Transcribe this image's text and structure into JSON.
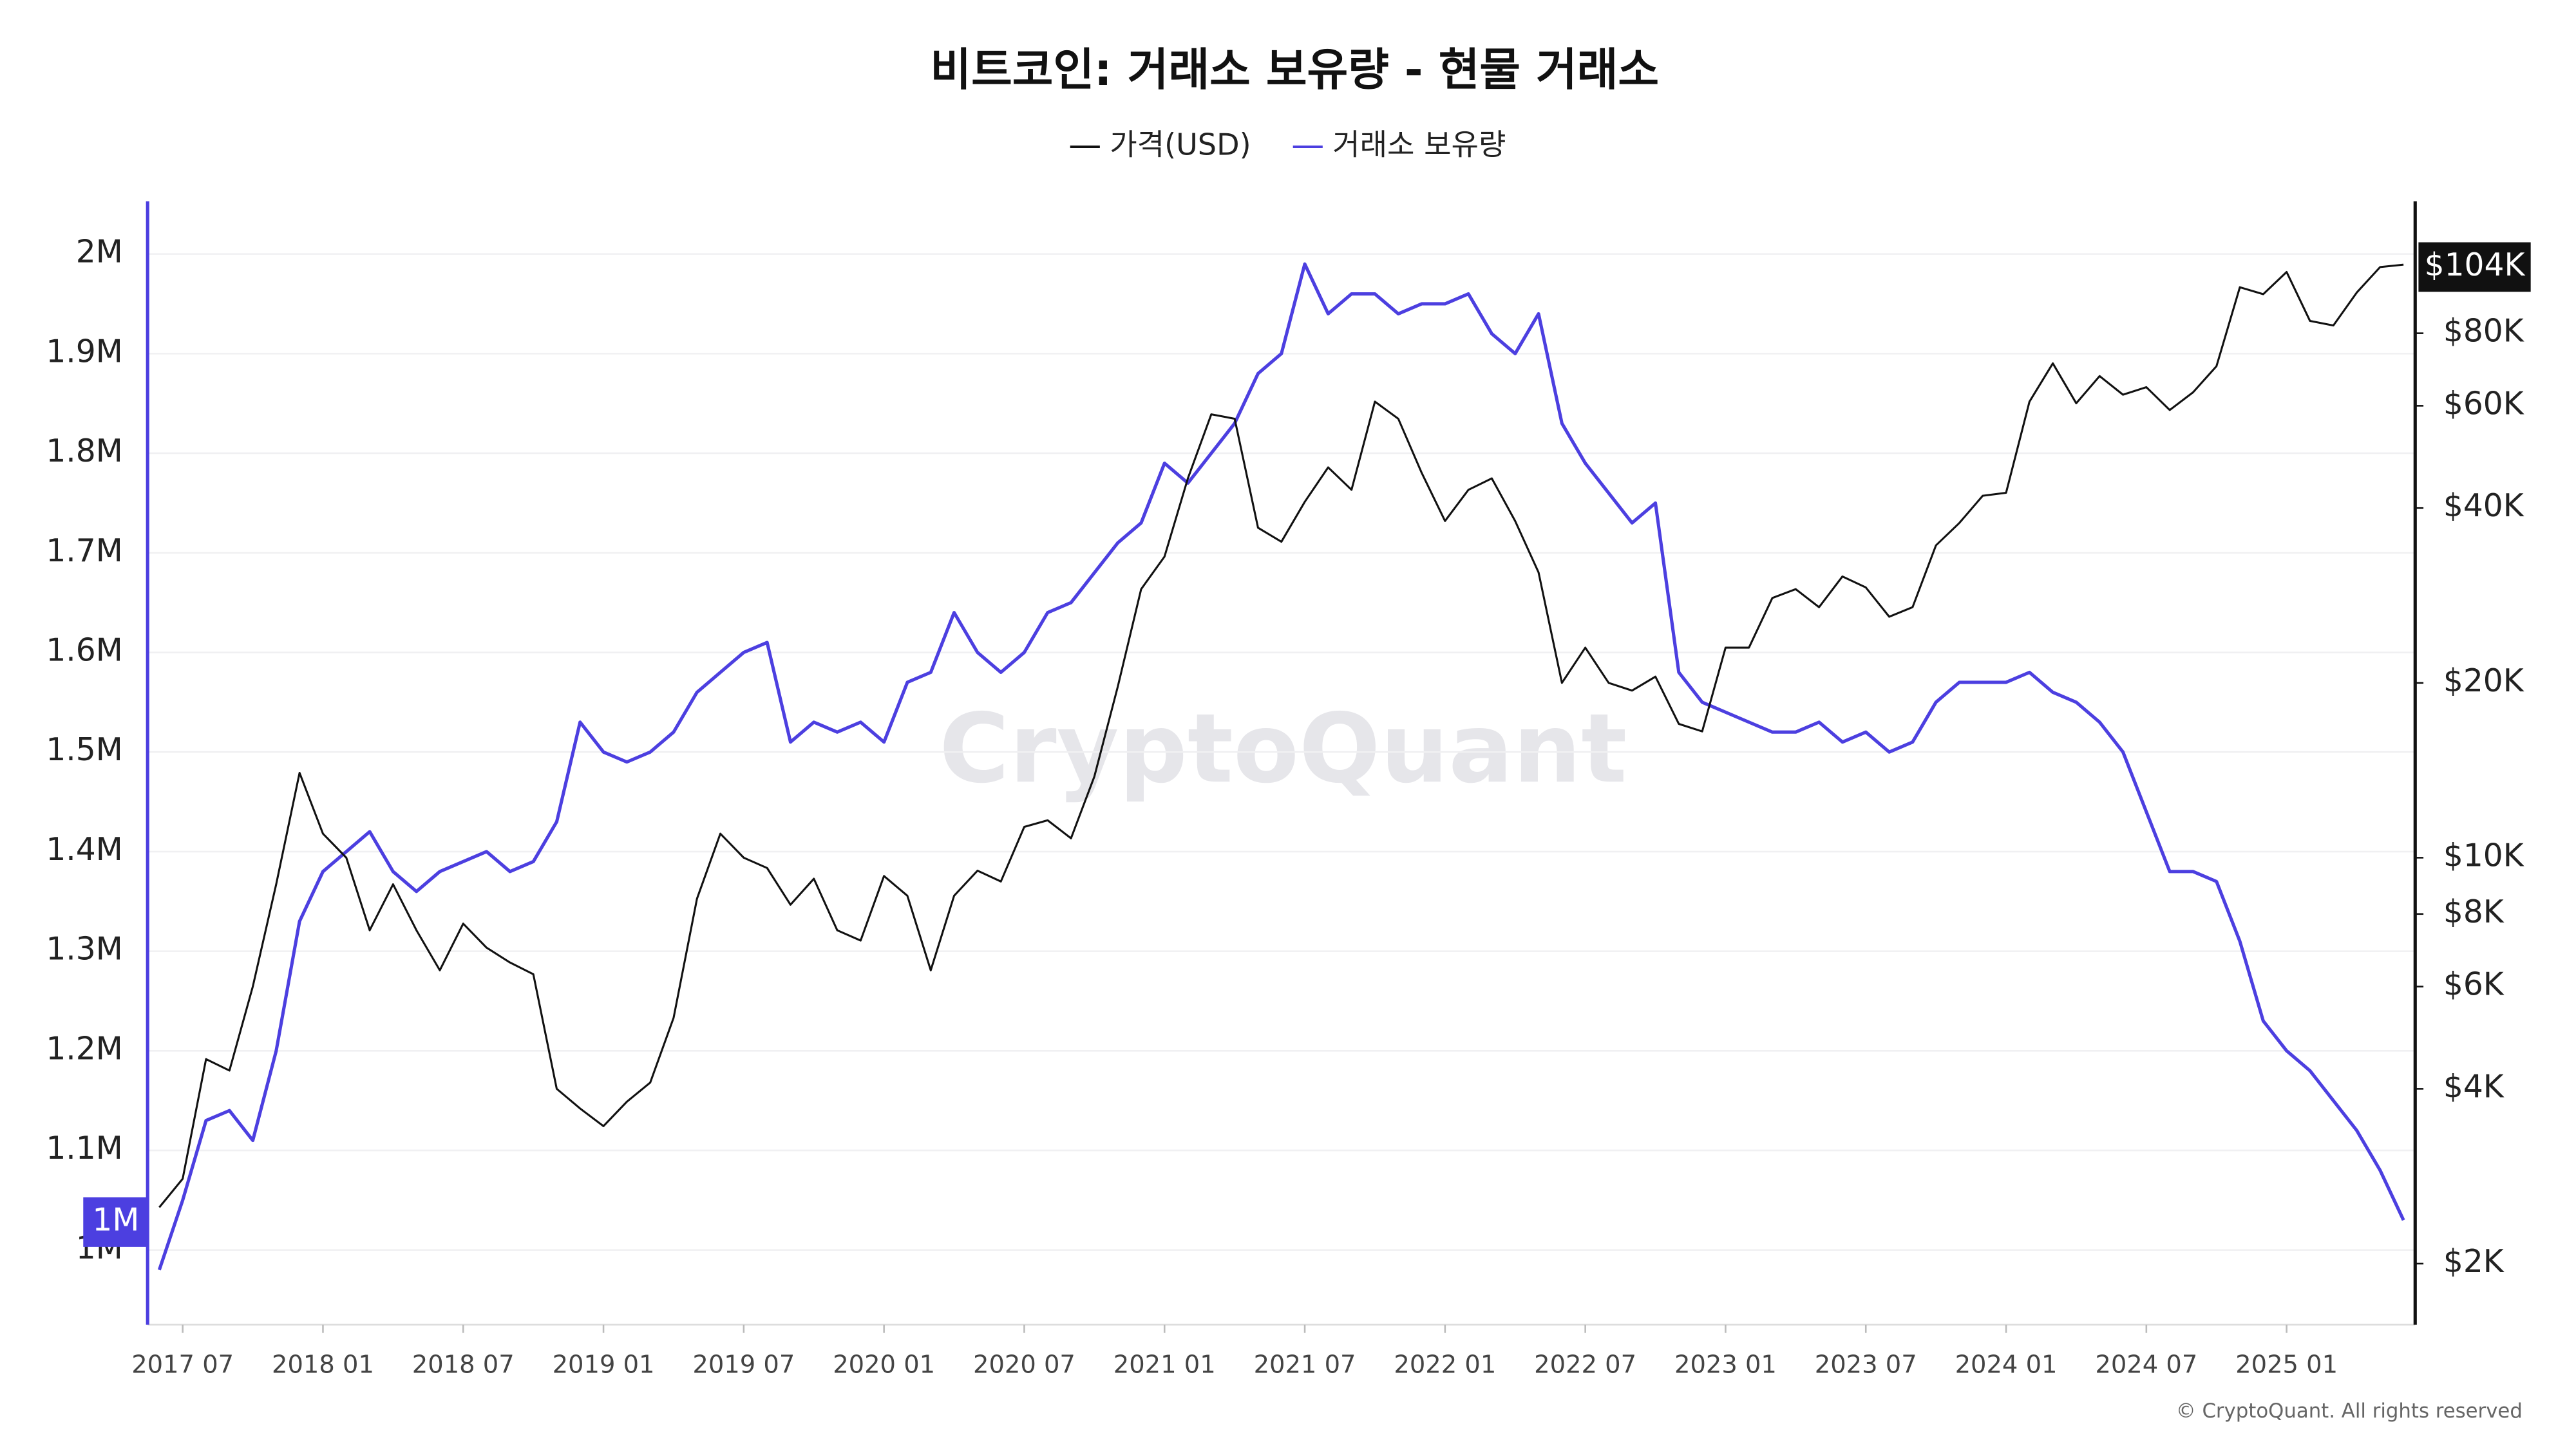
{
  "chart_data": {
    "type": "line",
    "title": "비트코인: 거래소 보유량 - 현물 거래소",
    "watermark": "CryptoQuant",
    "footer": "© CryptoQuant. All rights reserved",
    "x": [
      "2017 06",
      "2017 07",
      "2017 08",
      "2017 09",
      "2017 10",
      "2017 11",
      "2017 12",
      "2018 01",
      "2018 02",
      "2018 03",
      "2018 04",
      "2018 05",
      "2018 06",
      "2018 07",
      "2018 08",
      "2018 09",
      "2018 10",
      "2018 11",
      "2018 12",
      "2019 01",
      "2019 02",
      "2019 03",
      "2019 04",
      "2019 05",
      "2019 06",
      "2019 07",
      "2019 08",
      "2019 09",
      "2019 10",
      "2019 11",
      "2019 12",
      "2020 01",
      "2020 02",
      "2020 03",
      "2020 04",
      "2020 05",
      "2020 06",
      "2020 07",
      "2020 08",
      "2020 09",
      "2020 10",
      "2020 11",
      "2020 12",
      "2021 01",
      "2021 02",
      "2021 03",
      "2021 04",
      "2021 05",
      "2021 06",
      "2021 07",
      "2021 08",
      "2021 09",
      "2021 10",
      "2021 11",
      "2021 12",
      "2022 01",
      "2022 02",
      "2022 03",
      "2022 04",
      "2022 05",
      "2022 06",
      "2022 07",
      "2022 08",
      "2022 09",
      "2022 10",
      "2022 11",
      "2022 12",
      "2023 01",
      "2023 02",
      "2023 03",
      "2023 04",
      "2023 05",
      "2023 06",
      "2023 07",
      "2023 08",
      "2023 09",
      "2023 10",
      "2023 11",
      "2023 12",
      "2024 01",
      "2024 02",
      "2024 03",
      "2024 04",
      "2024 05",
      "2024 06",
      "2024 07",
      "2024 08",
      "2024 09",
      "2024 10",
      "2024 11",
      "2024 12",
      "2025 01",
      "2025 02",
      "2025 03",
      "2025 04",
      "2025 05",
      "2025 06"
    ],
    "xticks": [
      "2017 07",
      "2018 01",
      "2018 07",
      "2019 01",
      "2019 07",
      "2020 01",
      "2020 07",
      "2021 01",
      "2021 07",
      "2022 01",
      "2022 07",
      "2023 01",
      "2023 07",
      "2024 01",
      "2024 07",
      "2025 01"
    ],
    "series": [
      {
        "name": "가격(USD)",
        "color": "#111111",
        "axis": "y2",
        "values": [
          2500,
          2800,
          4500,
          4300,
          6000,
          9000,
          14000,
          11000,
          10000,
          7500,
          9000,
          7500,
          6400,
          7700,
          7000,
          6600,
          6300,
          4000,
          3700,
          3450,
          3800,
          4100,
          5300,
          8500,
          11000,
          10000,
          9600,
          8300,
          9200,
          7500,
          7200,
          9300,
          8600,
          6400,
          8600,
          9500,
          9100,
          11300,
          11600,
          10800,
          13800,
          19700,
          29000,
          33000,
          45000,
          58000,
          57000,
          37000,
          35000,
          41000,
          47000,
          43000,
          61000,
          57000,
          46000,
          38000,
          43000,
          45000,
          38000,
          31000,
          20000,
          23000,
          20000,
          19400,
          20500,
          17000,
          16500,
          23000,
          23000,
          28000,
          29000,
          27000,
          30500,
          29200,
          26000,
          27000,
          34500,
          37700,
          42000,
          42500,
          61000,
          71000,
          60600,
          67500,
          62700,
          64600,
          59000,
          63300,
          70200,
          96000,
          93400,
          102000,
          84000,
          82500,
          94000,
          104000,
          105000
        ]
      },
      {
        "name": "거래소 보유량",
        "color": "#4c3fe0",
        "values": [
          980000,
          1050000,
          1130000,
          1140000,
          1110000,
          1200000,
          1330000,
          1380000,
          1400000,
          1420000,
          1380000,
          1360000,
          1380000,
          1390000,
          1400000,
          1380000,
          1390000,
          1430000,
          1530000,
          1500000,
          1490000,
          1500000,
          1520000,
          1560000,
          1580000,
          1600000,
          1610000,
          1510000,
          1530000,
          1520000,
          1530000,
          1510000,
          1570000,
          1580000,
          1640000,
          1600000,
          1580000,
          1600000,
          1640000,
          1650000,
          1680000,
          1710000,
          1730000,
          1790000,
          1770000,
          1800000,
          1830000,
          1880000,
          1900000,
          1990000,
          1940000,
          1960000,
          1960000,
          1940000,
          1950000,
          1950000,
          1960000,
          1920000,
          1900000,
          1940000,
          1830000,
          1790000,
          1760000,
          1730000,
          1750000,
          1580000,
          1550000,
          1540000,
          1530000,
          1520000,
          1520000,
          1530000,
          1510000,
          1520000,
          1500000,
          1510000,
          1550000,
          1570000,
          1570000,
          1570000,
          1580000,
          1560000,
          1550000,
          1530000,
          1500000,
          1440000,
          1380000,
          1380000,
          1370000,
          1310000,
          1230000,
          1200000,
          1180000,
          1150000,
          1120000,
          1080000,
          1030000
        ]
      }
    ],
    "ylim": [
      925000,
      2053000
    ],
    "yticks": [
      {
        "value": 1000000,
        "label": "1M"
      },
      {
        "value": 1100000,
        "label": "1.1M"
      },
      {
        "value": 1200000,
        "label": "1.2M"
      },
      {
        "value": 1300000,
        "label": "1.3M"
      },
      {
        "value": 1400000,
        "label": "1.4M"
      },
      {
        "value": 1500000,
        "label": "1.5M"
      },
      {
        "value": 1600000,
        "label": "1.6M"
      },
      {
        "value": 1700000,
        "label": "1.7M"
      },
      {
        "value": 1800000,
        "label": "1.8M"
      },
      {
        "value": 1900000,
        "label": "1.9M"
      },
      {
        "value": 2000000,
        "label": "2M"
      }
    ],
    "y2lim": [
      1570,
      135000
    ],
    "y2log": true,
    "y2ticks": [
      {
        "value": 2000,
        "label": "$2K"
      },
      {
        "value": 4000,
        "label": "$4K"
      },
      {
        "value": 6000,
        "label": "$6K"
      },
      {
        "value": 8000,
        "label": "$8K"
      },
      {
        "value": 10000,
        "label": "$10K"
      },
      {
        "value": 20000,
        "label": "$20K"
      },
      {
        "value": 40000,
        "label": "$40K"
      },
      {
        "value": 60000,
        "label": "$60K"
      },
      {
        "value": 80000,
        "label": "$80K"
      }
    ],
    "y_current": {
      "value": 1028000,
      "label": "1M"
    },
    "y2_current": {
      "value": 104000,
      "label": "$104K"
    },
    "grid": true
  }
}
